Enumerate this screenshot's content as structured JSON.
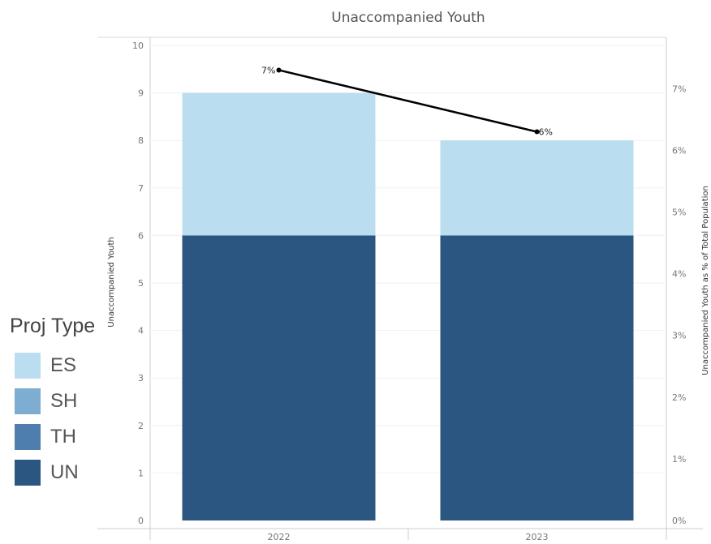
{
  "chart_data": {
    "type": "bar",
    "title": "Unaccompanied Youth",
    "categories": [
      "2022",
      "2023"
    ],
    "stacked": true,
    "series": [
      {
        "name": "UN",
        "values": [
          6,
          6
        ],
        "color": "#2c5682"
      },
      {
        "name": "ES",
        "values": [
          3,
          2
        ],
        "color": "#bbddf0"
      }
    ],
    "line_series": {
      "values": [
        7.3,
        6.3
      ],
      "labels": [
        "7%",
        "6%"
      ],
      "color": "#000000"
    },
    "ylabel": "Unaccompanied Youth",
    "ylim": [
      0,
      10
    ],
    "yticks": [
      "0",
      "1",
      "2",
      "3",
      "4",
      "5",
      "6",
      "7",
      "8",
      "9",
      "10"
    ],
    "y2label": "Unaccompanied Youth as % of Total Population",
    "y2lim": [
      0,
      7.7
    ],
    "y2ticks": [
      "0%",
      "1%",
      "2%",
      "3%",
      "4%",
      "5%",
      "6%",
      "7%"
    ],
    "gridlines": true,
    "legend": {
      "title": "Proj Type",
      "position": "left",
      "items": [
        {
          "label": "ES",
          "color": "#bbddf0"
        },
        {
          "label": "SH",
          "color": "#7eadd2"
        },
        {
          "label": "TH",
          "color": "#4e7eae"
        },
        {
          "label": "UN",
          "color": "#2c5682"
        }
      ]
    }
  }
}
